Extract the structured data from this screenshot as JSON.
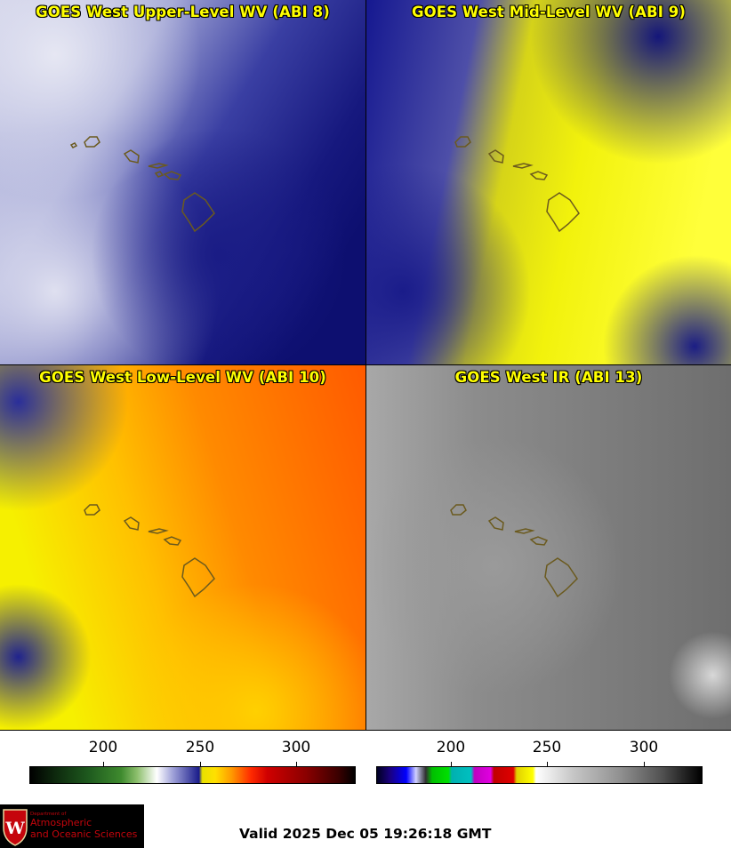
{
  "panels": {
    "upper": {
      "title": "GOES West Upper-Level WV (ABI 8)"
    },
    "mid": {
      "title": "GOES West Mid-Level WV (ABI 9)"
    },
    "low": {
      "title": "GOES West Low-Level WV (ABI 10)"
    },
    "ir": {
      "title": "GOES West IR (ABI 13)"
    }
  },
  "colorbars": {
    "wv": {
      "ticks": [
        "200",
        "250",
        "300"
      ]
    },
    "ir": {
      "ticks": [
        "200",
        "250",
        "300"
      ]
    }
  },
  "logo": {
    "line1": "Department of",
    "line2": "Atmospheric",
    "line3": "and Oceanic Sciences"
  },
  "valid_time": "Valid 2025 Dec 05 19:26:18 GMT"
}
